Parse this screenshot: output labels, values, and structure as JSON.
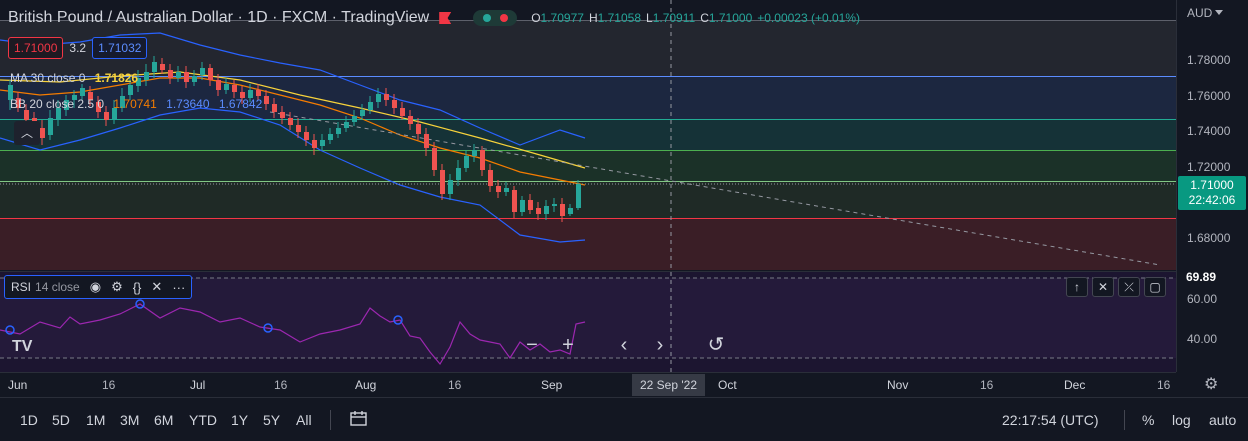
{
  "header": {
    "symbol_title": "British Pound / Australian Dollar · 1D · FXCM · TradingView",
    "ohlc": [
      {
        "label": "O",
        "value": "1.70977"
      },
      {
        "label": "H",
        "value": "1.71058"
      },
      {
        "label": "L",
        "value": "1.70911"
      },
      {
        "label": "C",
        "value": "1.71000"
      },
      {
        "label": "",
        "value": "+0.00023 (+0.01%)"
      }
    ],
    "bid": "1.71000",
    "spread": "3.2",
    "ask": "1.71032"
  },
  "studies": {
    "ma": {
      "name": "MA 30 close 0",
      "value": "1.71826",
      "color": "#f7d23b"
    },
    "bb": {
      "name": "BB 20 close 2.5 0",
      "basis": "1.70741",
      "upper": "1.73640",
      "lower": "1.67842",
      "basis_color": "#f57c00",
      "band_color": "#2962ff"
    }
  },
  "collapse_icon": "chevron-up-icon",
  "price_axis": {
    "currency": "AUD",
    "ticks": [
      "1.78000",
      "1.76000",
      "1.74000",
      "1.72000",
      "1.68000",
      "60.00",
      "40.00"
    ],
    "last_price": "1.71000",
    "countdown": "22:42:06",
    "rsi_value": "69.89"
  },
  "rsi": {
    "name": "RSI",
    "params": "14 close",
    "controls": [
      "eye-icon",
      "gear-icon",
      "braces-icon",
      "close-icon",
      "more-icon"
    ],
    "pane_buttons": [
      "arrow-up-icon",
      "collapse-icon",
      "expand-icon",
      "maximize-icon"
    ],
    "line_color": "#9c27b0"
  },
  "float_controls": [
    "zoom-out-icon",
    "zoom-in-icon",
    "scroll-left-icon",
    "scroll-right-icon",
    "reset-icon"
  ],
  "time_axis": {
    "ticks": [
      "Jun",
      "16",
      "Jul",
      "16",
      "Aug",
      "16",
      "Sep",
      "Oct",
      "Nov",
      "16",
      "Dec",
      "16"
    ],
    "crosshair_date": "22 Sep '22"
  },
  "bottom_bar": {
    "ranges": [
      "1D",
      "5D",
      "1M",
      "3M",
      "6M",
      "YTD",
      "1Y",
      "5Y",
      "All"
    ],
    "clock": "22:17:54 (UTC)",
    "options": [
      "%",
      "log",
      "auto"
    ]
  },
  "colors": {
    "up": "#26a69a",
    "down": "#ef5350",
    "background": "#131722"
  }
}
